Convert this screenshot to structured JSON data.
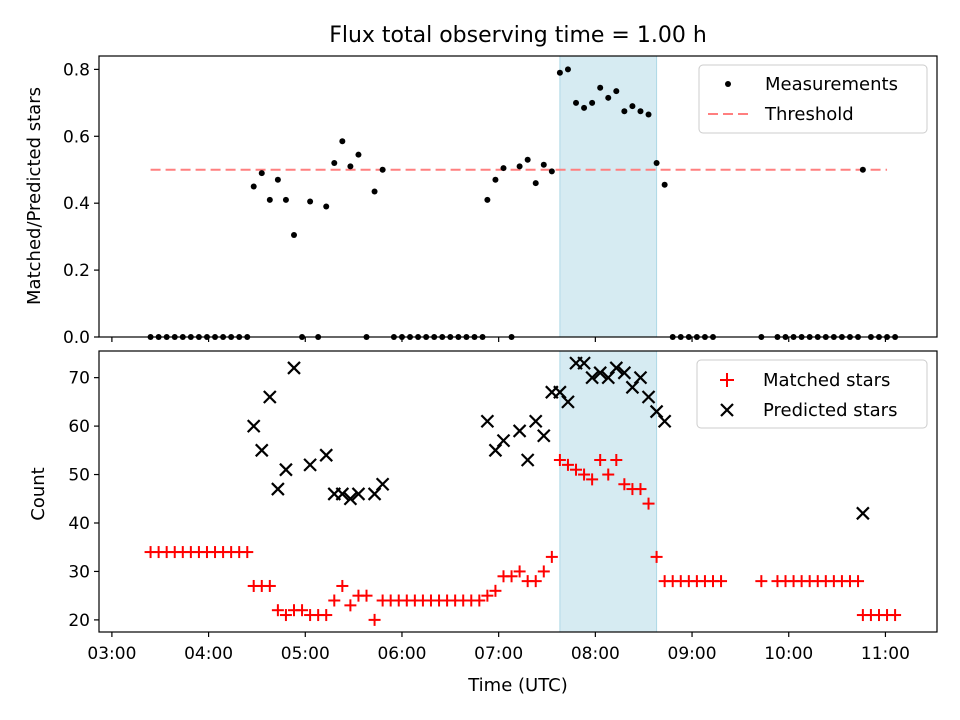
{
  "chart_data": [
    {
      "type": "scatter",
      "title": "Flux total observing time = 1.00 h",
      "ylabel": "Matched/Predicted stars",
      "xlim": [
        "02:52",
        "11:32"
      ],
      "ylim": [
        0,
        0.84
      ],
      "yticks": [
        "0.0",
        "0.2",
        "0.4",
        "0.6",
        "0.8"
      ],
      "shaded_interval": [
        "07:38",
        "08:38"
      ],
      "legend": {
        "position": "top-right",
        "entries": [
          "Measurements",
          "Threshold"
        ]
      },
      "threshold": {
        "name": "Threshold",
        "value": 0.5,
        "x_range": [
          "03:24",
          "11:01"
        ],
        "color": "#ff7f7f"
      },
      "series": [
        {
          "name": "Measurements",
          "color": "#000000",
          "points": [
            [
              "03:24",
              0
            ],
            [
              "03:29",
              0
            ],
            [
              "03:34",
              0
            ],
            [
              "03:39",
              0
            ],
            [
              "03:44",
              0
            ],
            [
              "03:49",
              0
            ],
            [
              "03:54",
              0
            ],
            [
              "03:59",
              0
            ],
            [
              "04:04",
              0
            ],
            [
              "04:09",
              0
            ],
            [
              "04:14",
              0
            ],
            [
              "04:19",
              0
            ],
            [
              "04:24",
              0
            ],
            [
              "04:28",
              0.45
            ],
            [
              "04:33",
              0.49
            ],
            [
              "04:38",
              0.41
            ],
            [
              "04:43",
              0.47
            ],
            [
              "04:48",
              0.41
            ],
            [
              "04:53",
              0.305
            ],
            [
              "04:58",
              0
            ],
            [
              "05:03",
              0.405
            ],
            [
              "05:08",
              0
            ],
            [
              "05:13",
              0.39
            ],
            [
              "05:18",
              0.52
            ],
            [
              "05:23",
              0.585
            ],
            [
              "05:28",
              0.51
            ],
            [
              "05:33",
              0.545
            ],
            [
              "05:38",
              0
            ],
            [
              "05:43",
              0.435
            ],
            [
              "05:48",
              0.5
            ],
            [
              "05:55",
              0
            ],
            [
              "06:00",
              0
            ],
            [
              "06:05",
              0
            ],
            [
              "06:10",
              0
            ],
            [
              "06:15",
              0
            ],
            [
              "06:20",
              0
            ],
            [
              "06:25",
              0
            ],
            [
              "06:30",
              0
            ],
            [
              "06:35",
              0
            ],
            [
              "06:40",
              0
            ],
            [
              "06:45",
              0
            ],
            [
              "06:50",
              0
            ],
            [
              "06:53",
              0.41
            ],
            [
              "06:58",
              0.47
            ],
            [
              "07:03",
              0.505
            ],
            [
              "07:08",
              0
            ],
            [
              "07:13",
              0.51
            ],
            [
              "07:18",
              0.53
            ],
            [
              "07:23",
              0.46
            ],
            [
              "07:28",
              0.515
            ],
            [
              "07:33",
              0.495
            ],
            [
              "07:38",
              0.79
            ],
            [
              "07:43",
              0.8
            ],
            [
              "07:48",
              0.7
            ],
            [
              "07:53",
              0.685
            ],
            [
              "07:58",
              0.7
            ],
            [
              "08:03",
              0.745
            ],
            [
              "08:08",
              0.715
            ],
            [
              "08:13",
              0.735
            ],
            [
              "08:18",
              0.675
            ],
            [
              "08:23",
              0.69
            ],
            [
              "08:28",
              0.675
            ],
            [
              "08:33",
              0.665
            ],
            [
              "08:38",
              0.52
            ],
            [
              "08:43",
              0.455
            ],
            [
              "08:48",
              0
            ],
            [
              "08:53",
              0
            ],
            [
              "08:58",
              0
            ],
            [
              "09:03",
              0
            ],
            [
              "09:08",
              0
            ],
            [
              "09:13",
              0
            ],
            [
              "09:43",
              0
            ],
            [
              "09:53",
              0
            ],
            [
              "09:58",
              0
            ],
            [
              "10:03",
              0
            ],
            [
              "10:08",
              0
            ],
            [
              "10:13",
              0
            ],
            [
              "10:18",
              0
            ],
            [
              "10:23",
              0
            ],
            [
              "10:28",
              0
            ],
            [
              "10:33",
              0
            ],
            [
              "10:38",
              0
            ],
            [
              "10:43",
              0
            ],
            [
              "10:46",
              0.5
            ],
            [
              "10:51",
              0
            ],
            [
              "10:56",
              0
            ],
            [
              "11:01",
              0
            ],
            [
              "11:06",
              0
            ]
          ]
        }
      ]
    },
    {
      "type": "scatter",
      "xlabel": "Time (UTC)",
      "ylabel": "Count",
      "xlim": [
        "02:52",
        "11:32"
      ],
      "ylim": [
        17.5,
        75.5
      ],
      "yticks": [
        "20",
        "30",
        "40",
        "50",
        "60",
        "70"
      ],
      "xticks": [
        "03:00",
        "04:00",
        "05:00",
        "06:00",
        "07:00",
        "08:00",
        "09:00",
        "10:00",
        "11:00"
      ],
      "shaded_interval": [
        "07:38",
        "08:38"
      ],
      "legend": {
        "position": "top-right",
        "entries": [
          "Matched stars",
          "Predicted stars"
        ]
      },
      "series": [
        {
          "name": "Matched stars",
          "marker": "plus",
          "color": "#ff0000",
          "points": [
            [
              "03:24",
              34
            ],
            [
              "03:29",
              34
            ],
            [
              "03:34",
              34
            ],
            [
              "03:39",
              34
            ],
            [
              "03:44",
              34
            ],
            [
              "03:49",
              34
            ],
            [
              "03:54",
              34
            ],
            [
              "03:59",
              34
            ],
            [
              "04:04",
              34
            ],
            [
              "04:09",
              34
            ],
            [
              "04:14",
              34
            ],
            [
              "04:19",
              34
            ],
            [
              "04:24",
              34
            ],
            [
              "04:28",
              27
            ],
            [
              "04:33",
              27
            ],
            [
              "04:38",
              27
            ],
            [
              "04:43",
              22
            ],
            [
              "04:48",
              21
            ],
            [
              "04:53",
              22
            ],
            [
              "04:58",
              22
            ],
            [
              "05:03",
              21
            ],
            [
              "05:08",
              21
            ],
            [
              "05:13",
              21
            ],
            [
              "05:18",
              24
            ],
            [
              "05:23",
              27
            ],
            [
              "05:28",
              23
            ],
            [
              "05:33",
              25
            ],
            [
              "05:38",
              25
            ],
            [
              "05:43",
              20
            ],
            [
              "05:48",
              24
            ],
            [
              "05:53",
              24
            ],
            [
              "05:58",
              24
            ],
            [
              "06:03",
              24
            ],
            [
              "06:08",
              24
            ],
            [
              "06:13",
              24
            ],
            [
              "06:18",
              24
            ],
            [
              "06:23",
              24
            ],
            [
              "06:28",
              24
            ],
            [
              "06:33",
              24
            ],
            [
              "06:38",
              24
            ],
            [
              "06:43",
              24
            ],
            [
              "06:48",
              24
            ],
            [
              "06:53",
              25
            ],
            [
              "06:58",
              26
            ],
            [
              "07:03",
              29
            ],
            [
              "07:08",
              29
            ],
            [
              "07:13",
              30
            ],
            [
              "07:18",
              28
            ],
            [
              "07:23",
              28
            ],
            [
              "07:28",
              30
            ],
            [
              "07:33",
              33
            ],
            [
              "07:38",
              53
            ],
            [
              "07:43",
              52
            ],
            [
              "07:48",
              51
            ],
            [
              "07:53",
              50
            ],
            [
              "07:58",
              49
            ],
            [
              "08:03",
              53
            ],
            [
              "08:08",
              50
            ],
            [
              "08:13",
              53
            ],
            [
              "08:18",
              48
            ],
            [
              "08:23",
              47
            ],
            [
              "08:28",
              47
            ],
            [
              "08:33",
              44
            ],
            [
              "08:38",
              33
            ],
            [
              "08:43",
              28
            ],
            [
              "08:48",
              28
            ],
            [
              "08:53",
              28
            ],
            [
              "08:58",
              28
            ],
            [
              "09:03",
              28
            ],
            [
              "09:08",
              28
            ],
            [
              "09:13",
              28
            ],
            [
              "09:18",
              28
            ],
            [
              "09:43",
              28
            ],
            [
              "09:53",
              28
            ],
            [
              "09:58",
              28
            ],
            [
              "10:03",
              28
            ],
            [
              "10:08",
              28
            ],
            [
              "10:13",
              28
            ],
            [
              "10:18",
              28
            ],
            [
              "10:23",
              28
            ],
            [
              "10:28",
              28
            ],
            [
              "10:33",
              28
            ],
            [
              "10:38",
              28
            ],
            [
              "10:43",
              28
            ],
            [
              "10:46",
              21
            ],
            [
              "10:51",
              21
            ],
            [
              "10:56",
              21
            ],
            [
              "11:01",
              21
            ],
            [
              "11:06",
              21
            ]
          ]
        },
        {
          "name": "Predicted stars",
          "marker": "x",
          "color": "#000000",
          "points": [
            [
              "04:28",
              60
            ],
            [
              "04:33",
              55
            ],
            [
              "04:38",
              66
            ],
            [
              "04:43",
              47
            ],
            [
              "04:48",
              51
            ],
            [
              "04:53",
              72
            ],
            [
              "05:03",
              52
            ],
            [
              "05:13",
              54
            ],
            [
              "05:18",
              46
            ],
            [
              "05:23",
              46
            ],
            [
              "05:28",
              45
            ],
            [
              "05:33",
              46
            ],
            [
              "05:43",
              46
            ],
            [
              "05:48",
              48
            ],
            [
              "06:53",
              61
            ],
            [
              "06:58",
              55
            ],
            [
              "07:03",
              57
            ],
            [
              "07:13",
              59
            ],
            [
              "07:18",
              53
            ],
            [
              "07:23",
              61
            ],
            [
              "07:28",
              58
            ],
            [
              "07:33",
              67
            ],
            [
              "07:38",
              67
            ],
            [
              "07:43",
              65
            ],
            [
              "07:48",
              73
            ],
            [
              "07:53",
              73
            ],
            [
              "07:58",
              70
            ],
            [
              "08:03",
              71
            ],
            [
              "08:08",
              70
            ],
            [
              "08:13",
              72
            ],
            [
              "08:18",
              71
            ],
            [
              "08:23",
              68
            ],
            [
              "08:28",
              70
            ],
            [
              "08:33",
              66
            ],
            [
              "08:38",
              63
            ],
            [
              "08:43",
              61
            ],
            [
              "10:46",
              42
            ]
          ]
        }
      ]
    }
  ]
}
